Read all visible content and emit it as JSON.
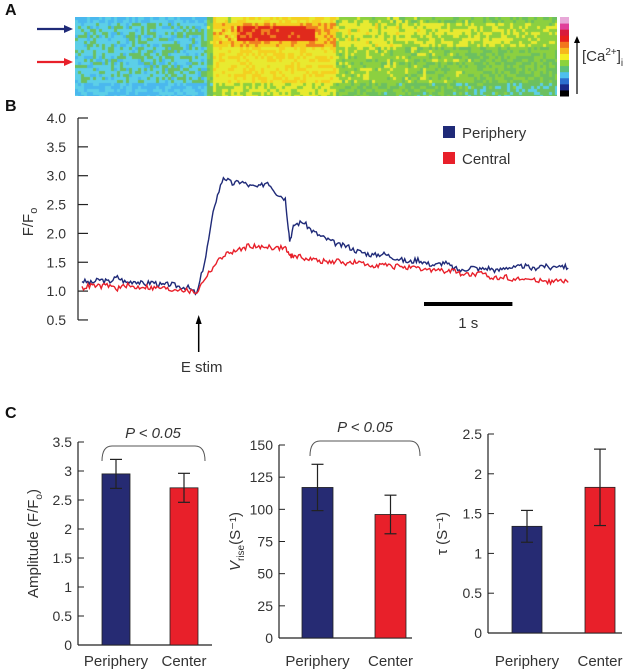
{
  "panels": {
    "a": "A",
    "b": "B",
    "c": "C"
  },
  "heatmap": {
    "colorbar_label": "[Ca",
    "colorbar_sup": "2+",
    "colorbar_close": "]",
    "colorbar_sub": "i",
    "arrow_colors": {
      "periphery": "#1f2a78",
      "central": "#e8202a"
    },
    "colorbar_colors": [
      "#000000",
      "#1a2a8a",
      "#2d6fd0",
      "#4ec0ef",
      "#5cc07a",
      "#8cd23c",
      "#f4ee22",
      "#f6b81c",
      "#f2761c",
      "#e8201c",
      "#d81c3c",
      "#e0409a",
      "#e8a8d8"
    ]
  },
  "chart_data": [
    {
      "type": "line",
      "ylabel": "F/F",
      "ylabel_sub": "o",
      "ylim": [
        0.5,
        4.0
      ],
      "yticks": [
        "0.5",
        "1.0",
        "1.5",
        "2.0",
        "2.5",
        "3.0",
        "3.5",
        "4.0"
      ],
      "xlim_s": [
        0,
        5.5
      ],
      "scale_bar_label": "1 s",
      "scale_bar_s": 1,
      "annotation": {
        "label": "E stim",
        "x_s": 1.32
      },
      "legend_position": "top-right",
      "x_s": [
        0,
        0.1,
        0.2,
        0.3,
        0.4,
        0.5,
        0.6,
        0.7,
        0.8,
        0.9,
        1.0,
        1.1,
        1.2,
        1.3,
        1.4,
        1.5,
        1.6,
        1.7,
        1.8,
        1.9,
        2.0,
        2.1,
        2.2,
        2.3,
        2.35,
        2.4,
        2.5,
        2.6,
        2.7,
        2.8,
        2.9,
        3.0,
        3.1,
        3.2,
        3.3,
        3.4,
        3.5,
        3.6,
        3.7,
        3.8,
        3.9,
        4.0,
        4.1,
        4.2,
        4.3,
        4.4,
        4.5,
        4.6,
        4.7,
        4.8,
        4.9,
        5.0,
        5.1,
        5.2,
        5.3,
        5.4,
        5.5
      ],
      "series": [
        {
          "name": "Periphery",
          "color": "#1f2a78",
          "values": [
            1.18,
            1.14,
            1.2,
            1.16,
            1.24,
            1.15,
            1.18,
            1.12,
            1.16,
            1.1,
            1.12,
            1.08,
            1.06,
            0.95,
            1.6,
            2.5,
            2.98,
            2.86,
            2.9,
            2.82,
            2.8,
            2.9,
            2.7,
            2.6,
            1.88,
            2.15,
            2.2,
            2.05,
            1.95,
            1.88,
            1.8,
            1.78,
            1.7,
            1.66,
            1.62,
            1.65,
            1.6,
            1.55,
            1.5,
            1.55,
            1.48,
            1.45,
            1.5,
            1.4,
            1.35,
            1.42,
            1.38,
            1.4,
            1.35,
            1.42,
            1.4,
            1.44,
            1.38,
            1.45,
            1.4,
            1.46,
            1.4
          ]
        },
        {
          "name": "Central",
          "color": "#e8202a",
          "values": [
            1.05,
            1.1,
            1.08,
            1.1,
            1.04,
            1.1,
            1.06,
            1.08,
            1.05,
            1.06,
            1.02,
            1.04,
            1.0,
            0.98,
            1.25,
            1.45,
            1.62,
            1.68,
            1.72,
            1.8,
            1.75,
            1.78,
            1.74,
            1.76,
            1.6,
            1.62,
            1.58,
            1.55,
            1.52,
            1.5,
            1.52,
            1.48,
            1.5,
            1.46,
            1.45,
            1.46,
            1.42,
            1.44,
            1.4,
            1.38,
            1.36,
            1.38,
            1.34,
            1.35,
            1.3,
            1.28,
            1.3,
            1.26,
            1.22,
            1.25,
            1.2,
            1.22,
            1.18,
            1.2,
            1.16,
            1.18,
            1.15
          ]
        }
      ]
    },
    {
      "type": "bar",
      "ylabel": "Amplitude (F/F",
      "ylabel_sub": "o",
      "ylabel_close": ")",
      "categories": [
        "Periphery",
        "Center"
      ],
      "values": [
        2.95,
        2.71
      ],
      "errors": [
        0.25,
        0.25
      ],
      "colors": [
        "#262b73",
        "#e8202a"
      ],
      "ylim": [
        0,
        3.5
      ],
      "yticks": [
        "0",
        "0.5",
        "1",
        "1.5",
        "2",
        "2.5",
        "3",
        "3.5"
      ],
      "annotation": "P < 0.05"
    },
    {
      "type": "bar",
      "ylabel": "V",
      "ylabel_sub": "rise",
      "ylabel_close": "(S⁻¹)",
      "categories": [
        "Periphery",
        "Center"
      ],
      "values": [
        117,
        96
      ],
      "errors": [
        18,
        15
      ],
      "colors": [
        "#262b73",
        "#e8202a"
      ],
      "ylim": [
        0,
        150
      ],
      "yticks": [
        "0",
        "25",
        "50",
        "75",
        "100",
        "125",
        "150"
      ],
      "annotation": "P < 0.05"
    },
    {
      "type": "bar",
      "ylabel": "τ (S⁻¹)",
      "categories": [
        "Periphery",
        "Center"
      ],
      "values": [
        1.34,
        1.83
      ],
      "errors": [
        0.2,
        0.48
      ],
      "colors": [
        "#262b73",
        "#e8202a"
      ],
      "ylim": [
        0,
        2.5
      ],
      "yticks": [
        "0",
        "0.5",
        "1",
        "1.5",
        "2",
        "2.5"
      ]
    }
  ]
}
